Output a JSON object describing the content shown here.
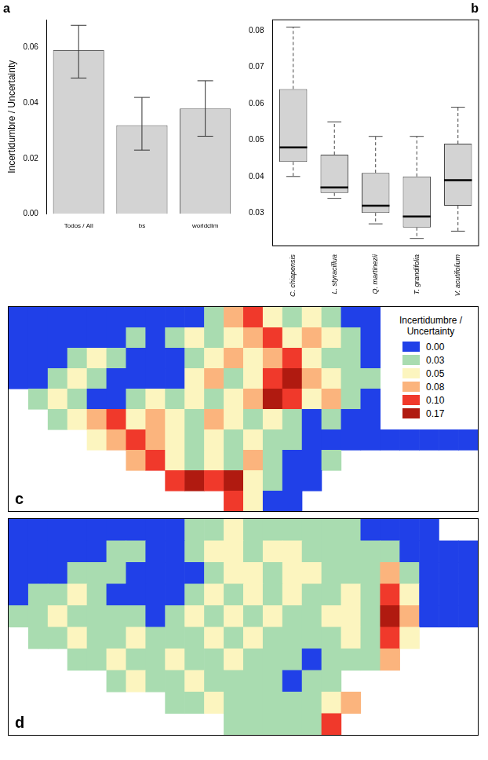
{
  "chart_data": [
    {
      "type": "bar",
      "title": "a",
      "y_label": "Incertidumbre / Uncertainty",
      "categories": [
        "Todos / All",
        "bs",
        "worldclim"
      ],
      "values": [
        0.059,
        0.032,
        0.038
      ],
      "error_low": [
        0.049,
        0.023,
        0.028
      ],
      "error_high": [
        0.068,
        0.042,
        0.048
      ],
      "color": "#d3d3d3",
      "grid": false,
      "ylim": [
        0,
        0.07
      ],
      "yticks": [
        {
          "value": 0,
          "label": "0.00"
        },
        0.02,
        0.04,
        0.06
      ]
    },
    {
      "type": "boxplot",
      "title": "b",
      "categories": [
        "C. chiapensis",
        "L. styraciflua",
        "Q. martinezii",
        "T. grandifolia",
        "V. acutifolium"
      ],
      "whisker_low": [
        0.04,
        0.034,
        0.027,
        0.023,
        0.025
      ],
      "q1": [
        0.044,
        0.0355,
        0.03,
        0.026,
        0.032
      ],
      "median": [
        0.048,
        0.037,
        0.032,
        0.029,
        0.039
      ],
      "q3": [
        0.064,
        0.046,
        0.041,
        0.04,
        0.049
      ],
      "whisker_high": [
        0.081,
        0.055,
        0.051,
        0.051,
        0.059
      ],
      "color": "#d3d3d3",
      "grid": false,
      "ylim": [
        0.021,
        0.083
      ],
      "yticks": [
        0.03,
        0.04,
        0.05,
        0.06,
        0.07,
        0.08
      ]
    },
    {
      "type": "heatmap",
      "title": "c",
      "color_bar": {
        "title": "Incertidumbre / Uncertainty",
        "ticks": [
          {
            "value": 0,
            "label": "0.00"
          },
          0.03,
          0.05,
          0.08,
          {
            "value": 0.1,
            "label": "0.10"
          },
          0.17
        ],
        "colors": [
          "#2040e8",
          "#a9dcb0",
          "#fcf5bf",
          "#fbb47d",
          "#f0392b",
          "#b01a10"
        ]
      },
      "cells": [
        [
          0,
          0,
          0,
          0,
          0,
          0,
          0,
          0,
          0,
          0,
          0.03,
          0.08,
          0.1,
          0.05,
          0.03,
          0.05,
          0.03,
          0,
          0,
          null,
          null,
          null,
          null,
          null
        ],
        [
          0,
          0,
          0,
          0,
          0,
          0,
          0.03,
          0,
          0.03,
          0.05,
          0.03,
          0.05,
          0.08,
          0.1,
          0.05,
          0.08,
          0.05,
          0.03,
          0,
          null,
          null,
          null,
          null,
          null
        ],
        [
          0,
          0,
          0,
          0.03,
          0.05,
          0.03,
          0,
          0,
          0,
          0.03,
          0.05,
          0.08,
          0.05,
          0.08,
          0.1,
          0.05,
          0.03,
          0.03,
          0,
          null,
          null,
          null,
          null,
          null
        ],
        [
          0,
          0,
          0.03,
          0.05,
          0.03,
          0,
          0,
          0,
          0,
          0.05,
          0.08,
          0.03,
          0.05,
          0.1,
          0.17,
          0.08,
          0.05,
          0.03,
          0.03,
          null,
          null,
          null,
          null,
          null
        ],
        [
          null,
          0.03,
          0.05,
          0.03,
          0,
          0,
          0.03,
          0.05,
          0.03,
          0.05,
          0.03,
          0.05,
          0.08,
          0.17,
          0.1,
          0.05,
          0.08,
          0.03,
          0,
          null,
          null,
          null,
          null,
          null
        ],
        [
          null,
          null,
          0.03,
          0.05,
          0.08,
          0.1,
          0.05,
          0.08,
          0.05,
          0.03,
          0.08,
          0.05,
          0.03,
          0.05,
          0.03,
          0,
          0.03,
          0,
          0,
          null,
          null,
          null,
          null,
          null
        ],
        [
          null,
          null,
          null,
          null,
          0.05,
          0.08,
          0.1,
          0.08,
          0.05,
          0.03,
          0.05,
          0.03,
          0.05,
          0.03,
          0.03,
          0,
          0,
          0,
          0,
          0,
          0,
          0,
          0,
          0
        ],
        [
          null,
          null,
          null,
          null,
          null,
          null,
          0.08,
          0.1,
          0.05,
          0.03,
          0.05,
          0.03,
          0.08,
          0.03,
          0,
          0,
          0.03,
          null,
          null,
          null,
          null,
          null,
          null,
          null
        ],
        [
          null,
          null,
          null,
          null,
          null,
          null,
          null,
          null,
          0.1,
          0.17,
          0.1,
          0.17,
          0.05,
          0.03,
          0,
          0,
          null,
          null,
          null,
          null,
          null,
          null,
          null,
          null
        ],
        [
          null,
          null,
          null,
          null,
          null,
          null,
          null,
          null,
          null,
          null,
          null,
          0.1,
          0.05,
          0,
          0,
          null,
          null,
          null,
          null,
          null,
          null,
          null,
          null,
          null
        ]
      ]
    },
    {
      "type": "heatmap",
      "title": "d",
      "cells": [
        [
          0,
          0,
          0,
          0,
          0,
          0,
          0,
          0,
          0,
          0.03,
          0.03,
          0.05,
          0.03,
          0.03,
          0.03,
          0.03,
          0.03,
          0.03,
          0,
          0,
          0,
          0,
          null,
          null
        ],
        [
          0,
          0,
          0,
          0,
          0,
          0.03,
          0.03,
          0,
          0,
          0.03,
          0.05,
          0.05,
          0.03,
          0.05,
          0.05,
          0.03,
          0.03,
          0.03,
          0.03,
          0.03,
          0,
          0,
          0,
          0
        ],
        [
          0,
          0,
          0,
          0.03,
          0.03,
          0.03,
          0,
          0,
          0,
          0,
          0.03,
          0.05,
          0.05,
          0.03,
          0.05,
          0.05,
          0.03,
          0.03,
          0.03,
          0.08,
          0.03,
          0,
          0,
          0
        ],
        [
          0,
          0.03,
          0.03,
          0.05,
          0.03,
          0,
          0,
          0,
          0,
          0.03,
          0.05,
          0.03,
          0.05,
          0.03,
          0.05,
          0.03,
          0.03,
          0.05,
          0.03,
          0.1,
          0.05,
          0,
          0,
          0
        ],
        [
          0.03,
          0.03,
          0.05,
          0.03,
          0.03,
          0.03,
          0.03,
          0,
          0.03,
          0.05,
          0.03,
          0.05,
          0.03,
          0.05,
          0.03,
          0.03,
          0.05,
          0.05,
          0.03,
          0.17,
          0.08,
          0,
          0,
          0
        ],
        [
          null,
          0.03,
          0.03,
          0.05,
          0.03,
          0.03,
          0.05,
          0.03,
          0.03,
          0.03,
          0.05,
          0.03,
          0.05,
          0.03,
          0.03,
          0.03,
          0.03,
          0.05,
          0.03,
          0.1,
          0.05,
          null,
          null,
          null
        ],
        [
          null,
          null,
          null,
          0.03,
          0.03,
          0.05,
          0.03,
          0.03,
          0.05,
          0.03,
          0.03,
          0.05,
          0.03,
          0.03,
          0.03,
          0,
          0.03,
          0.03,
          0.03,
          0.08,
          null,
          null,
          null,
          null
        ],
        [
          null,
          null,
          null,
          null,
          null,
          0.03,
          0.05,
          0.03,
          0.03,
          0.05,
          0.03,
          0.03,
          0.03,
          0.03,
          0,
          0.03,
          0.03,
          null,
          null,
          null,
          null,
          null,
          null,
          null
        ],
        [
          null,
          null,
          null,
          null,
          null,
          null,
          null,
          null,
          0.03,
          0.03,
          0.05,
          0.03,
          0.03,
          0.03,
          0.03,
          0.03,
          0.05,
          0.08,
          null,
          null,
          null,
          null,
          null,
          null
        ],
        [
          null,
          null,
          null,
          null,
          null,
          null,
          null,
          null,
          null,
          null,
          null,
          0.03,
          0.03,
          0.03,
          0.03,
          0.03,
          0.1,
          null,
          null,
          null,
          null,
          null,
          null,
          null
        ]
      ]
    }
  ]
}
